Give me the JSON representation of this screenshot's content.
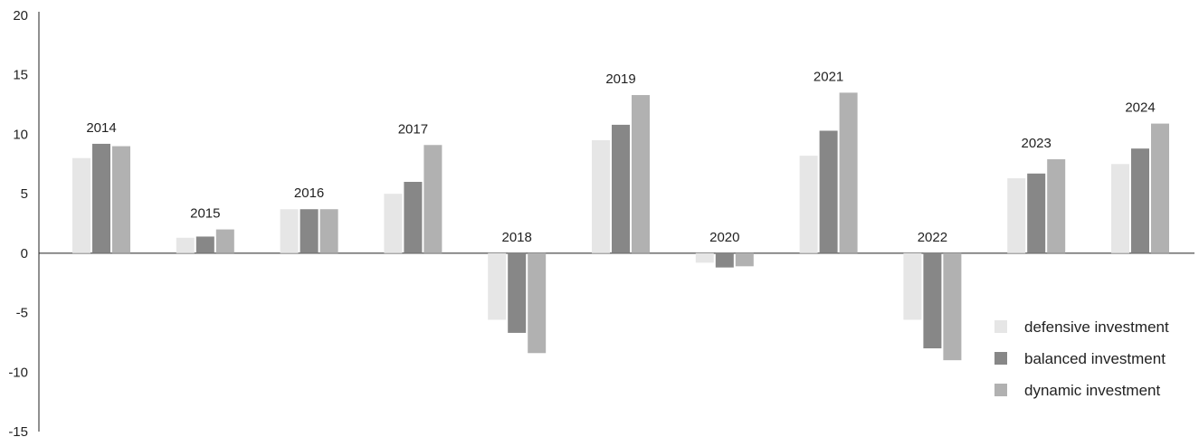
{
  "chart_data": {
    "type": "bar",
    "categories": [
      "2014",
      "2015",
      "2016",
      "2017",
      "2018",
      "2019",
      "2020",
      "2021",
      "2022",
      "2023",
      "2024"
    ],
    "series": [
      {
        "name": "defensive investment",
        "color": "#e6e6e6",
        "values": [
          8.0,
          1.3,
          3.7,
          5.0,
          -5.6,
          9.5,
          -0.8,
          8.2,
          -5.6,
          6.3,
          7.5
        ]
      },
      {
        "name": "balanced investment",
        "color": "#878787",
        "values": [
          9.2,
          1.4,
          3.7,
          6.0,
          -6.7,
          10.8,
          -1.2,
          10.3,
          -8.0,
          6.7,
          8.8
        ]
      },
      {
        "name": "dynamic investment",
        "color": "#b1b1b1",
        "values": [
          9.0,
          2.0,
          3.7,
          9.1,
          -8.4,
          13.3,
          -1.1,
          13.5,
          -9.0,
          7.9,
          10.9
        ]
      }
    ],
    "yticks": [
      "20",
      "15",
      "10",
      "5",
      "0",
      "-5",
      "-10",
      "-15"
    ],
    "ylim": [
      -15,
      20
    ],
    "grid": false,
    "legend_position": "bottom-right"
  }
}
